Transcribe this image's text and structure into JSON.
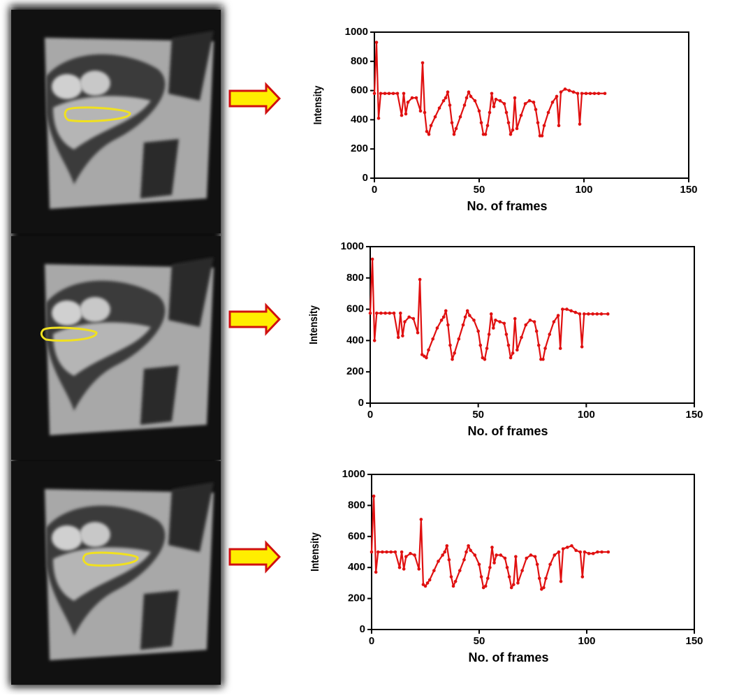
{
  "chart_data": [
    {
      "type": "line",
      "xlabel": "No. of frames",
      "ylabel": "Intensity",
      "color": "#e01010",
      "xlim": [
        0,
        150
      ],
      "xticks": [
        0,
        50,
        100,
        150
      ],
      "ylim": [
        0,
        1000
      ],
      "yticks": [
        0,
        200,
        400,
        600,
        800,
        1000
      ],
      "x": [
        0,
        1,
        2,
        3,
        5,
        7,
        9,
        11,
        13,
        14,
        15,
        16,
        18,
        20,
        22,
        23,
        24,
        25,
        26,
        27,
        29,
        31,
        33,
        34,
        35,
        36,
        37,
        38,
        39,
        41,
        43,
        44,
        45,
        46,
        48,
        50,
        51,
        52,
        53,
        54,
        55,
        56,
        57,
        58,
        60,
        62,
        63,
        64,
        65,
        66,
        67,
        68,
        70,
        72,
        74,
        76,
        77,
        78,
        79,
        80,
        81,
        83,
        85,
        87,
        88,
        89,
        91,
        93,
        95,
        97,
        98,
        99,
        101,
        103,
        105,
        107,
        110
      ],
      "values": [
        580,
        930,
        410,
        580,
        580,
        580,
        580,
        580,
        430,
        580,
        440,
        520,
        550,
        550,
        460,
        790,
        450,
        320,
        300,
        360,
        420,
        480,
        530,
        550,
        590,
        500,
        380,
        300,
        340,
        420,
        500,
        550,
        590,
        560,
        530,
        460,
        380,
        300,
        300,
        360,
        450,
        580,
        490,
        540,
        530,
        510,
        450,
        380,
        300,
        330,
        550,
        340,
        430,
        510,
        530,
        520,
        470,
        380,
        290,
        290,
        360,
        450,
        520,
        560,
        360,
        590,
        610,
        600,
        590,
        580,
        370,
        580,
        580,
        580,
        580,
        580,
        580
      ]
    },
    {
      "type": "line",
      "xlabel": "No. of frames",
      "ylabel": "Intensity",
      "color": "#e01010",
      "xlim": [
        0,
        150
      ],
      "xticks": [
        0,
        50,
        100,
        150
      ],
      "ylim": [
        0,
        1000
      ],
      "yticks": [
        0,
        200,
        400,
        600,
        800,
        1000
      ],
      "x": [
        0,
        1,
        2,
        3,
        5,
        7,
        9,
        11,
        13,
        14,
        15,
        16,
        18,
        20,
        22,
        23,
        24,
        25,
        26,
        27,
        29,
        31,
        33,
        34,
        35,
        36,
        37,
        38,
        39,
        41,
        43,
        44,
        45,
        46,
        48,
        50,
        51,
        52,
        53,
        54,
        55,
        56,
        57,
        58,
        60,
        62,
        63,
        64,
        65,
        66,
        67,
        68,
        70,
        72,
        74,
        76,
        77,
        78,
        79,
        80,
        81,
        83,
        85,
        87,
        88,
        89,
        91,
        93,
        95,
        97,
        98,
        99,
        101,
        103,
        105,
        107,
        110
      ],
      "values": [
        575,
        920,
        400,
        575,
        575,
        575,
        575,
        575,
        420,
        575,
        430,
        520,
        550,
        540,
        450,
        790,
        310,
        300,
        290,
        340,
        410,
        480,
        530,
        550,
        590,
        500,
        370,
        280,
        320,
        410,
        500,
        550,
        590,
        560,
        530,
        460,
        370,
        290,
        280,
        350,
        440,
        570,
        480,
        530,
        520,
        510,
        440,
        370,
        290,
        320,
        540,
        340,
        420,
        500,
        530,
        520,
        460,
        370,
        280,
        280,
        350,
        440,
        520,
        560,
        350,
        600,
        600,
        590,
        580,
        570,
        360,
        570,
        570,
        570,
        570,
        570,
        570
      ]
    },
    {
      "type": "line",
      "xlabel": "No. of frames",
      "ylabel": "Intensity",
      "color": "#e01010",
      "xlim": [
        0,
        150
      ],
      "xticks": [
        0,
        50,
        100,
        150
      ],
      "ylim": [
        0,
        1000
      ],
      "yticks": [
        0,
        200,
        400,
        600,
        800,
        1000
      ],
      "x": [
        0,
        1,
        2,
        3,
        5,
        7,
        9,
        11,
        13,
        14,
        15,
        16,
        18,
        20,
        22,
        23,
        24,
        25,
        26,
        27,
        29,
        31,
        33,
        34,
        35,
        36,
        37,
        38,
        39,
        41,
        43,
        44,
        45,
        46,
        48,
        50,
        51,
        52,
        53,
        54,
        55,
        56,
        57,
        58,
        60,
        62,
        63,
        64,
        65,
        66,
        67,
        68,
        70,
        72,
        74,
        76,
        77,
        78,
        79,
        80,
        81,
        83,
        85,
        87,
        88,
        89,
        91,
        93,
        95,
        97,
        98,
        99,
        101,
        103,
        105,
        107,
        110
      ],
      "values": [
        500,
        860,
        370,
        500,
        500,
        500,
        500,
        500,
        400,
        500,
        390,
        470,
        490,
        480,
        390,
        710,
        290,
        280,
        300,
        320,
        380,
        440,
        480,
        500,
        540,
        450,
        340,
        280,
        310,
        380,
        450,
        500,
        540,
        510,
        480,
        420,
        340,
        270,
        280,
        330,
        400,
        530,
        430,
        480,
        480,
        460,
        400,
        340,
        270,
        290,
        470,
        300,
        380,
        460,
        480,
        470,
        420,
        330,
        260,
        270,
        330,
        420,
        480,
        500,
        310,
        520,
        530,
        540,
        510,
        500,
        340,
        500,
        490,
        490,
        500,
        500,
        500
      ]
    }
  ]
}
